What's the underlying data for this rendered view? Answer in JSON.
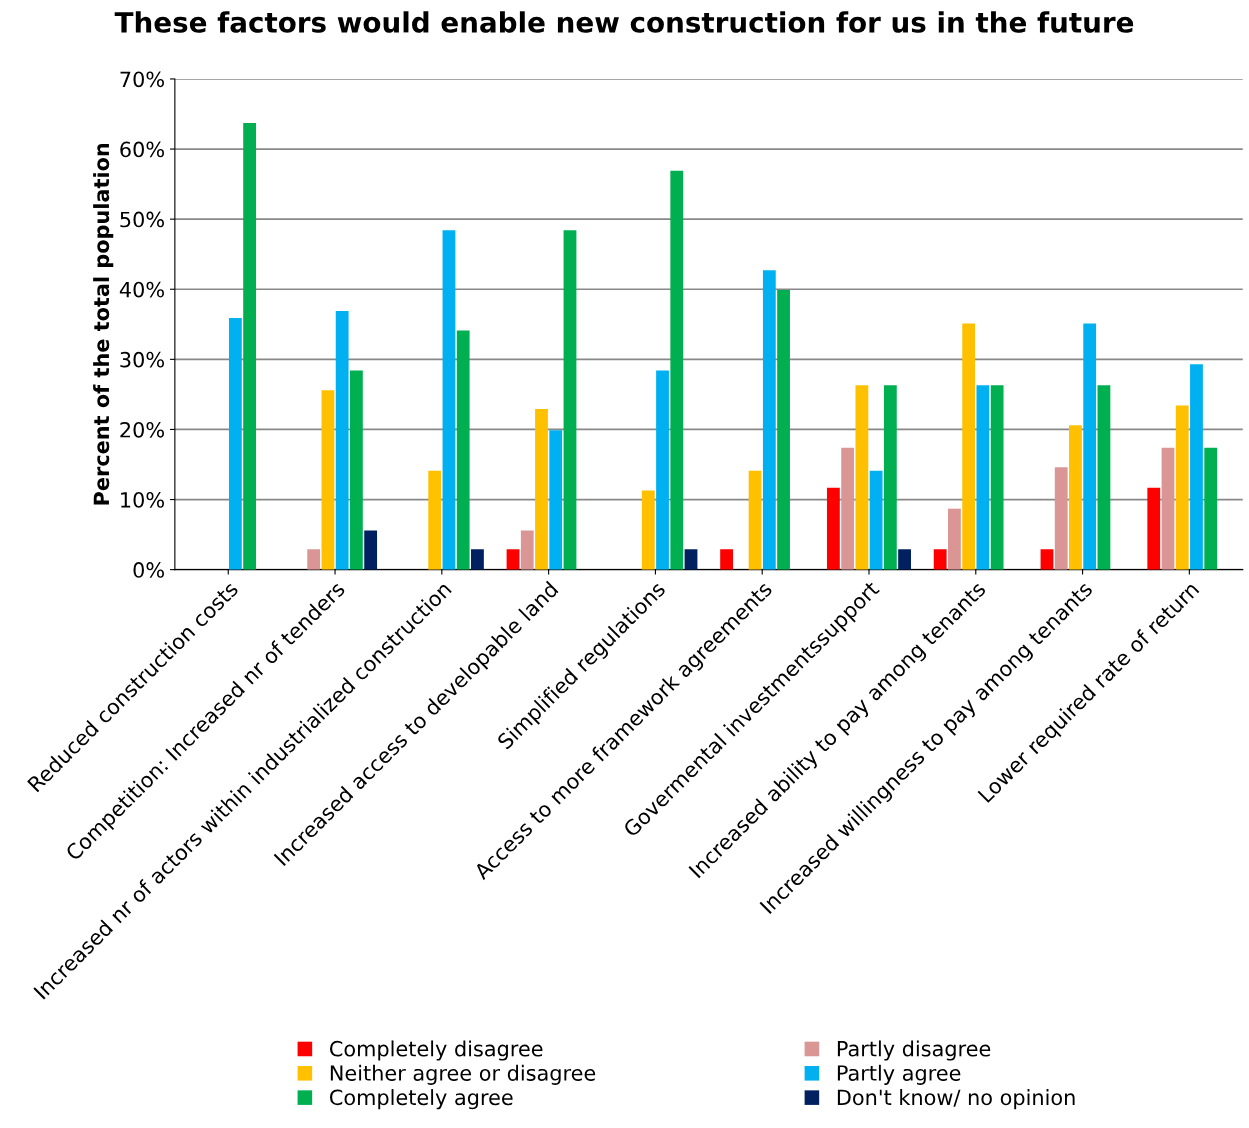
{
  "chart_data": {
    "type": "bar",
    "title": "These factors would enable new construction for us in the future",
    "ylabel": "Percent of the total population",
    "categories": [
      "Reduced construction costs",
      "Competition: Increased nr of tenders",
      "Increased nr of actors within industrialized construction",
      "Increased access to developable land",
      "Simplified regulations",
      "Access to more framework agreements",
      "Govermental investmentssupport",
      "Increased ability to pay among tenants",
      "Increased willingness to pay among tenants",
      "Lower required rate of return"
    ],
    "series": [
      {
        "name": "Completely disagree",
        "color": "#ff0000",
        "values": [
          0,
          0,
          0,
          2.9,
          0,
          2.9,
          11.7,
          2.9,
          2.9,
          11.7
        ]
      },
      {
        "name": "Partly disagree",
        "color": "#da9694",
        "values": [
          0,
          2.9,
          0,
          5.6,
          0,
          0,
          17.4,
          8.7,
          14.6,
          17.4
        ]
      },
      {
        "name": "Neither agree or disagree",
        "color": "#ffc000",
        "values": [
          0,
          25.6,
          14.1,
          22.9,
          11.3,
          14.1,
          26.3,
          35.1,
          20.6,
          23.4
        ]
      },
      {
        "name": "Partly agree",
        "color": "#00b0f0",
        "values": [
          35.9,
          36.9,
          48.4,
          19.9,
          28.4,
          42.7,
          14.1,
          26.3,
          35.1,
          29.3
        ]
      },
      {
        "name": "Completely agree",
        "color": "#00b050",
        "values": [
          63.7,
          28.4,
          34.1,
          48.4,
          56.9,
          39.9,
          26.3,
          26.3,
          26.3,
          17.4
        ]
      },
      {
        "name": "Don't know/ no opinion",
        "color": "#002060",
        "values": [
          0,
          5.6,
          2.9,
          0,
          2.9,
          0,
          2.9,
          0,
          0,
          0
        ]
      }
    ],
    "ylim": [
      0,
      70
    ],
    "yticks": [
      {
        "value": 0,
        "label": "0%"
      },
      {
        "value": 10,
        "label": "10%"
      },
      {
        "value": 20,
        "label": "20%"
      },
      {
        "value": 30,
        "label": "30%"
      },
      {
        "value": 40,
        "label": "40%"
      },
      {
        "value": 50,
        "label": "50%"
      },
      {
        "value": 60,
        "label": "60%"
      },
      {
        "value": 70,
        "label": "70%"
      }
    ],
    "grid": "y",
    "legend": "bottom"
  }
}
